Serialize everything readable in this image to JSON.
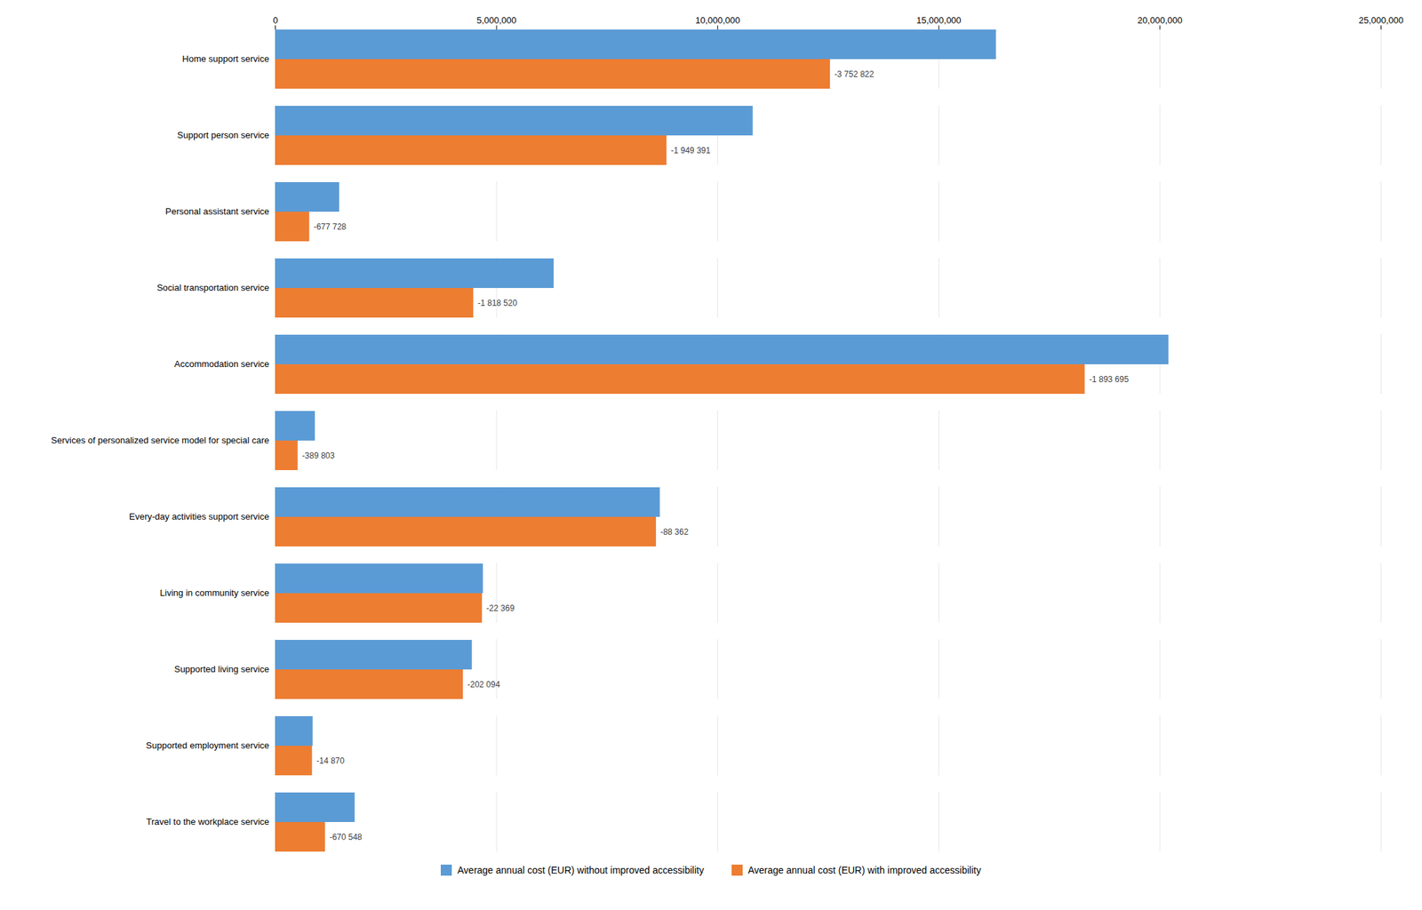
{
  "chart_data": {
    "type": "bar",
    "orientation": "horizontal",
    "categories": [
      "Home support service",
      "Support person service",
      "Personal assistant service",
      "Social transportation service",
      "Accommodation service",
      "Services of personalized service model for special care",
      "Every-day activities support service",
      "Living in community service",
      "Supported living service",
      "Supported employment service",
      "Travel to the workplace service"
    ],
    "series": [
      {
        "name": "Average annual cost (EUR) without improved accessibility",
        "color": "#5B9BD5",
        "values": [
          16300000,
          10800000,
          1450000,
          6300000,
          20200000,
          900000,
          8700000,
          4700000,
          4450000,
          850000,
          1800000
        ]
      },
      {
        "name": "Average annual cost (EUR) with improved accessibility",
        "color": "#ED7D31",
        "values": [
          12547178,
          8850609,
          772272,
          4481480,
          18306305,
          510197,
          8611638,
          4677631,
          4247906,
          835130,
          1129452
        ],
        "annotations": [
          "-3 752 822",
          "-1 949 391",
          "-677 728",
          "-1 818 520",
          "-1 893 695",
          "-389 803",
          "-88 362",
          "-22 369",
          "-202 094",
          "-14 870",
          "-670 548"
        ]
      }
    ],
    "xlim": [
      0,
      25000000
    ],
    "xticks": [
      0,
      {
        "value": 5000000,
        "label": "5,000,000"
      },
      {
        "value": 10000000,
        "label": "10,000,000"
      },
      {
        "value": 15000000,
        "label": "15,000,000"
      },
      {
        "value": 20000000,
        "label": "20,000,000"
      },
      {
        "value": 25000000,
        "label": "25,000,000"
      }
    ],
    "grid": true,
    "legend": "bottom"
  }
}
